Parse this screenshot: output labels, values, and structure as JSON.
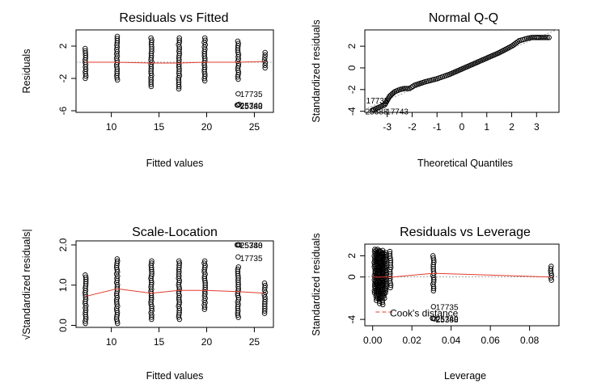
{
  "figure": {
    "panels": [
      {
        "title": "Residuals vs Fitted",
        "xlabel": "Fitted values",
        "ylabel": "Residuals"
      },
      {
        "title": "Normal Q-Q",
        "xlabel": "Theoretical Quantiles",
        "ylabel": "Standardized residuals"
      },
      {
        "title": "Scale-Location",
        "xlabel": "Fitted values",
        "ylabel": "√Standardized residuals|"
      },
      {
        "title": "Residuals vs Leverage",
        "xlabel": "Leverage",
        "ylabel": "Standardized residuals"
      }
    ]
  },
  "chart_data": [
    {
      "type": "scatter",
      "title": "Residuals vs Fitted",
      "xlabel": "Fitted values",
      "ylabel": "Residuals",
      "xlim": [
        6.3,
        27.0
      ],
      "ylim": [
        -6.2,
        4.0
      ],
      "xticks": [
        10,
        15,
        20,
        25
      ],
      "yticks": [
        2,
        -2,
        -6
      ],
      "groups": [
        {
          "x": 7.3,
          "ymin": -2.0,
          "ymax": 1.7
        },
        {
          "x": 10.6,
          "ymin": -2.2,
          "ymax": 3.2
        },
        {
          "x": 14.2,
          "ymin": -3.0,
          "ymax": 3.0
        },
        {
          "x": 17.1,
          "ymin": -3.3,
          "ymax": 3.0
        },
        {
          "x": 19.8,
          "ymin": -2.3,
          "ymax": 3.0
        },
        {
          "x": 23.3,
          "ymin": -2.1,
          "ymax": 2.6
        },
        {
          "x": 26.1,
          "ymin": -0.7,
          "ymax": 1.2
        }
      ],
      "extra_points": [
        [
          23.3,
          -3.9
        ],
        [
          23.3,
          -5.3
        ],
        [
          23.2,
          -5.3
        ],
        [
          23.4,
          -5.2
        ]
      ],
      "smooth": {
        "x": [
          7.3,
          10.6,
          14.2,
          17.1,
          19.8,
          23.3,
          26.1
        ],
        "y": [
          0.0,
          0.0,
          -0.1,
          -0.1,
          0.0,
          0.0,
          0.1
        ]
      },
      "ref_y": 0,
      "annotations": [
        {
          "text": "17735",
          "x": 23.5,
          "y": -3.9
        },
        {
          "text": "25740",
          "x": 23.5,
          "y": -5.3
        },
        {
          "text": "25388",
          "x": 23.5,
          "y": -5.3
        }
      ]
    },
    {
      "type": "scatter",
      "title": "Normal Q-Q",
      "xlabel": "Theoretical Quantiles",
      "ylabel": "Standardized residuals",
      "xlim": [
        -3.9,
        3.9
      ],
      "ylim": [
        -4.1,
        3.5
      ],
      "xticks": [
        -3,
        -2,
        -1,
        0,
        1,
        2,
        3
      ],
      "yticks": [
        2,
        0,
        -2,
        -4
      ],
      "qq": {
        "x": [
          -3.6,
          -3.1,
          -2.9,
          -2.7,
          -2.5,
          -2.3,
          -2.1,
          -1.9,
          -1.5,
          -1.0,
          -0.5,
          0.0,
          0.5,
          1.0,
          1.5,
          2.0,
          2.3,
          2.6,
          2.8,
          3.0,
          3.1,
          3.5
        ],
        "y": [
          -3.9,
          -3.4,
          -2.6,
          -2.2,
          -2.0,
          -1.9,
          -1.9,
          -1.6,
          -1.3,
          -1.0,
          -0.6,
          -0.1,
          0.4,
          0.9,
          1.4,
          2.0,
          2.5,
          2.7,
          2.8,
          2.8,
          2.8,
          2.8
        ]
      },
      "ref_line": {
        "x": [
          -3.9,
          3.9
        ],
        "y": [
          -3.8,
          3.6
        ]
      },
      "annotations": [
        {
          "text": "17735",
          "x": -3.85,
          "y": -3.0
        },
        {
          "text": "25388",
          "x": -3.88,
          "y": -4.0
        },
        {
          "text": "17743",
          "x": -3.05,
          "y": -4.0
        }
      ]
    },
    {
      "type": "scatter",
      "title": "Scale-Location",
      "xlabel": "Fitted values",
      "ylabel": "√Standardized residuals|",
      "xlim": [
        6.3,
        27.0
      ],
      "ylim": [
        -0.05,
        2.1
      ],
      "xticks": [
        10,
        15,
        20,
        25
      ],
      "yticks": [
        0.0,
        1.0,
        2.0
      ],
      "groups": [
        {
          "x": 7.3,
          "ymin": 0.05,
          "ymax": 1.25
        },
        {
          "x": 10.6,
          "ymin": 0.05,
          "ymax": 1.65
        },
        {
          "x": 14.2,
          "ymin": 0.15,
          "ymax": 1.6
        },
        {
          "x": 17.1,
          "ymin": 0.15,
          "ymax": 1.6
        },
        {
          "x": 19.8,
          "ymin": 0.4,
          "ymax": 1.6
        },
        {
          "x": 23.3,
          "ymin": 0.2,
          "ymax": 1.45
        },
        {
          "x": 26.1,
          "ymin": 0.3,
          "ymax": 1.05
        }
      ],
      "extra_points": [
        [
          23.3,
          1.7
        ],
        [
          23.3,
          2.0
        ],
        [
          23.2,
          2.0
        ],
        [
          23.4,
          2.0
        ]
      ],
      "smooth": {
        "x": [
          7.3,
          10.6,
          14.2,
          17.1,
          19.8,
          23.3,
          26.1
        ],
        "y": [
          0.72,
          0.91,
          0.8,
          0.87,
          0.87,
          0.84,
          0.8
        ]
      },
      "annotations": [
        {
          "text": "25740",
          "x": 23.5,
          "y": 2.0
        },
        {
          "text": "25388",
          "x": 23.5,
          "y": 2.0
        },
        {
          "text": "17735",
          "x": 23.5,
          "y": 1.7
        }
      ]
    },
    {
      "type": "scatter",
      "title": "Residuals vs Leverage",
      "xlabel": "Leverage",
      "ylabel": "Standardized residuals",
      "xlim": [
        -0.004,
        0.095
      ],
      "ylim": [
        -4.6,
        3.1
      ],
      "xticks": [
        0.0,
        0.02,
        0.04,
        0.06,
        0.08
      ],
      "xtick_labels": [
        "0.00",
        "0.02",
        "0.04",
        "0.06",
        "0.08"
      ],
      "yticks": [
        2,
        0,
        -4
      ],
      "groups": [
        {
          "x": 0.001,
          "ymin": -1.5,
          "ymax": 2.6
        },
        {
          "x": 0.0018,
          "ymin": -2.2,
          "ymax": 2.5
        },
        {
          "x": 0.0026,
          "ymin": -2.0,
          "ymax": 2.6
        },
        {
          "x": 0.0034,
          "ymin": -2.5,
          "ymax": 2.5
        },
        {
          "x": 0.0042,
          "ymin": -2.0,
          "ymax": 2.4
        },
        {
          "x": 0.005,
          "ymin": -2.6,
          "ymax": 2.5
        },
        {
          "x": 0.0058,
          "ymin": -2.0,
          "ymax": 2.2
        },
        {
          "x": 0.0066,
          "ymin": -1.5,
          "ymax": 2.3
        },
        {
          "x": 0.009,
          "ymin": -1.0,
          "ymax": 2.4
        },
        {
          "x": 0.031,
          "ymin": -1.3,
          "ymax": 2.0
        },
        {
          "x": 0.091,
          "ymin": -0.3,
          "ymax": 1.0
        }
      ],
      "extra_points": [
        [
          0.031,
          -2.8
        ],
        [
          0.031,
          -3.9
        ],
        [
          0.0305,
          -3.9
        ],
        [
          0.0315,
          -3.95
        ]
      ],
      "smooth": {
        "x": [
          0.0,
          0.01,
          0.031,
          0.091
        ],
        "y": [
          0.0,
          0.0,
          0.35,
          0.0
        ]
      },
      "ref_y": 0,
      "cooks_segment": {
        "x": [
          0.0015,
          0.0105
        ],
        "y": [
          -3.3,
          -3.3
        ]
      },
      "legend": {
        "label": "Cook's distance",
        "x": 0.0088,
        "y": -3.4
      },
      "annotations": [
        {
          "text": "17735",
          "x": 0.0322,
          "y": -2.8
        },
        {
          "text": "25740",
          "x": 0.0322,
          "y": -3.9
        },
        {
          "text": "25388",
          "x": 0.0322,
          "y": -3.9
        }
      ]
    }
  ]
}
